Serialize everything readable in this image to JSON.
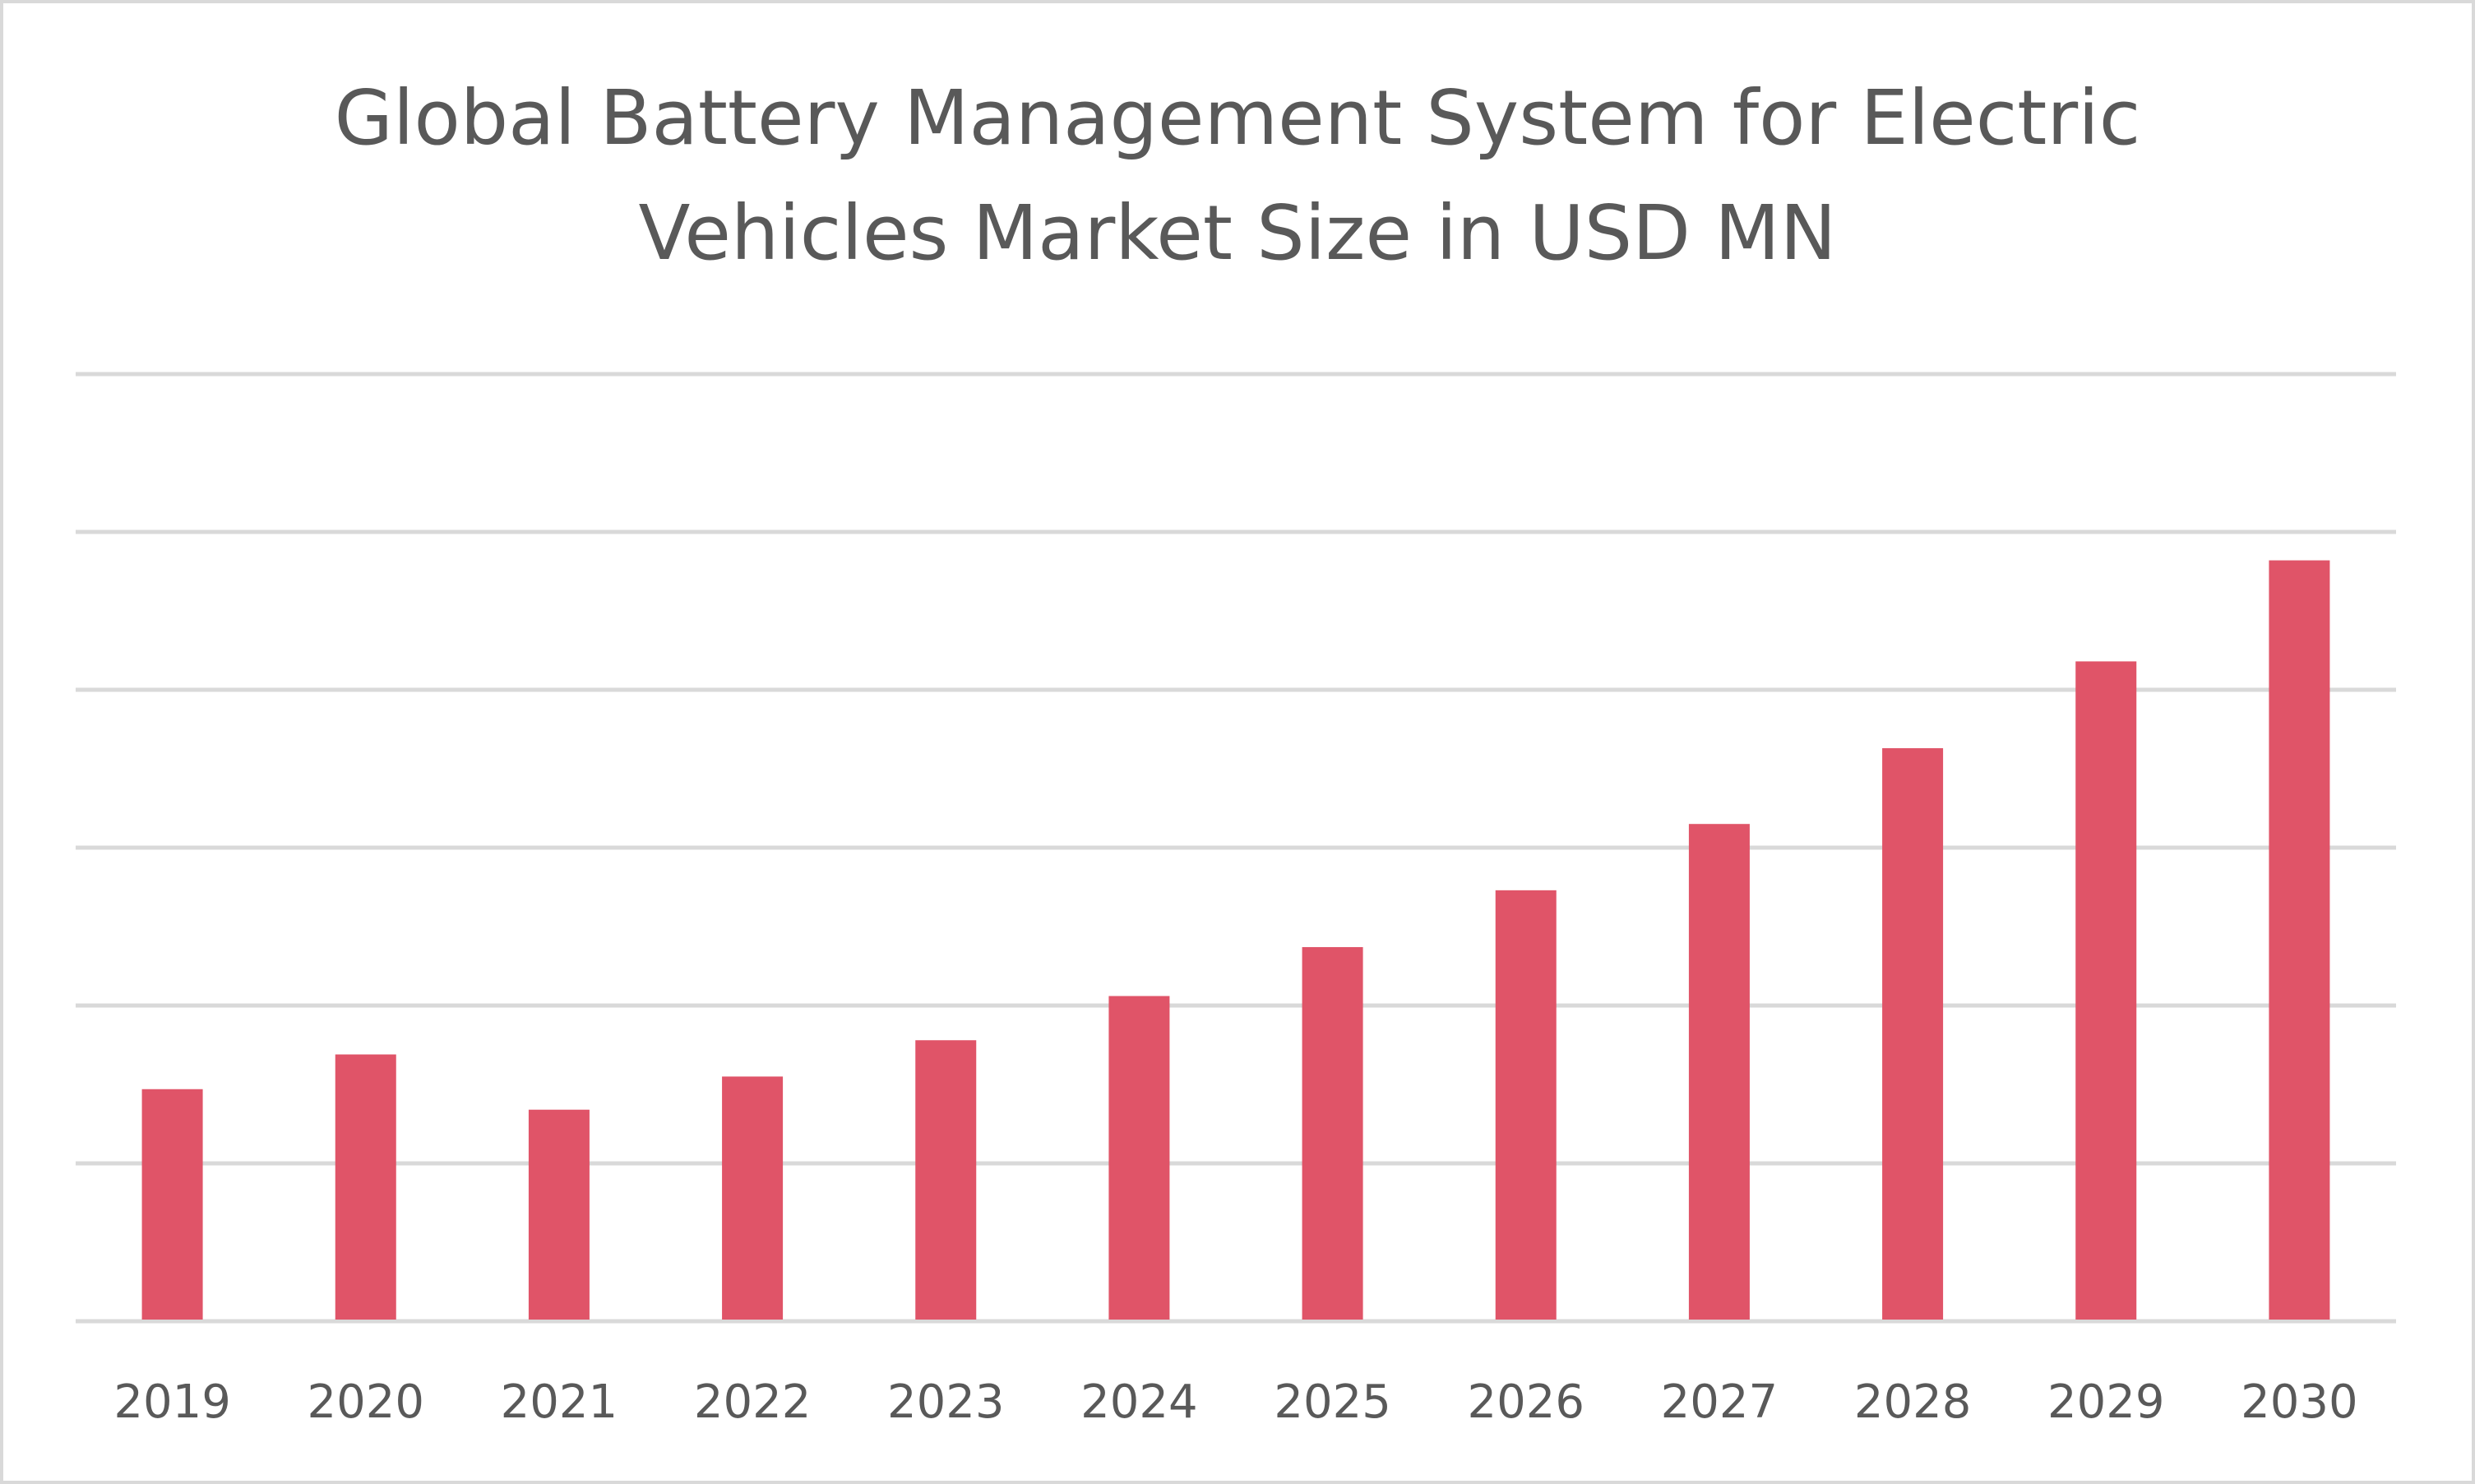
{
  "chart_data": {
    "type": "bar",
    "title_lines": [
      "Global Battery Management System for Electric",
      "Vehicles Market Size in USD MN"
    ],
    "title": "Global Battery Management System for Electric Vehicles Market Size in USD MN",
    "xlabel": "",
    "ylabel": "",
    "y_tick_labels_shown": false,
    "value_note": "values estimated in gridline units (no y-axis labels shown)",
    "categories": [
      "2019",
      "2020",
      "2021",
      "2022",
      "2023",
      "2024",
      "2025",
      "2026",
      "2027",
      "2028",
      "2029",
      "2030"
    ],
    "values": [
      1.47,
      1.69,
      1.34,
      1.55,
      1.78,
      2.06,
      2.37,
      2.73,
      3.15,
      3.63,
      4.18,
      4.82
    ],
    "ylim": [
      0,
      6
    ],
    "gridlines": [
      0,
      1,
      2,
      3,
      4,
      5,
      6
    ],
    "grid": true,
    "legend": "none",
    "bar_color": "#E05468"
  }
}
